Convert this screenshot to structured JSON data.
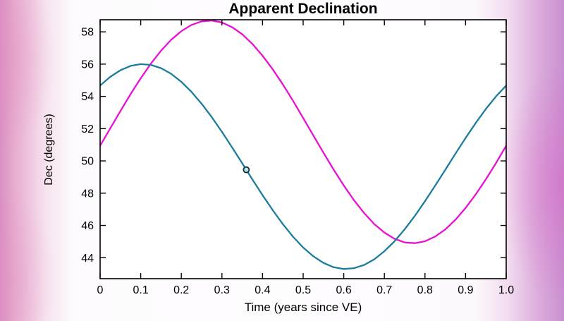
{
  "chart_data": {
    "type": "line",
    "title": "Apparent Declination",
    "xlabel": "Time (years since VE)",
    "ylabel": "Dec (degrees)",
    "xlim": [
      0,
      1
    ],
    "ylim": [
      42.7,
      58.75
    ],
    "grid": false,
    "legend": "none",
    "frame_color": "#000000",
    "plot_bg": "#ffffff",
    "x_ticks": [
      0,
      0.1,
      0.2,
      0.3,
      0.4,
      0.5,
      0.6,
      0.7,
      0.8,
      0.9,
      1.0
    ],
    "x_tick_labels": [
      "0",
      "0.1",
      "0.2",
      "0.3",
      "0.4",
      "0.5",
      "0.6",
      "0.7",
      "0.8",
      "0.9",
      "1.0"
    ],
    "y_ticks": [
      44,
      46,
      48,
      50,
      52,
      54,
      56,
      58
    ],
    "y_tick_labels": [
      "44",
      "46",
      "48",
      "50",
      "52",
      "54",
      "56",
      "58"
    ],
    "x": [
      0,
      0.025,
      0.05,
      0.075,
      0.1,
      0.125,
      0.15,
      0.175,
      0.2,
      0.225,
      0.25,
      0.275,
      0.3,
      0.325,
      0.35,
      0.375,
      0.4,
      0.425,
      0.45,
      0.475,
      0.5,
      0.525,
      0.55,
      0.575,
      0.6,
      0.625,
      0.65,
      0.675,
      0.7,
      0.725,
      0.75,
      0.775,
      0.8,
      0.825,
      0.85,
      0.875,
      0.9,
      0.925,
      0.95,
      0.975,
      1.0
    ],
    "series": [
      {
        "name": "magenta-declination-curve",
        "color": "#ea0fd4",
        "width": 2.3,
        "values": [
          50.94,
          52.02,
          53.09,
          54.14,
          55.12,
          56.03,
          56.83,
          57.51,
          58.04,
          58.43,
          58.65,
          58.7,
          58.58,
          58.29,
          57.85,
          57.25,
          56.52,
          55.68,
          54.74,
          53.73,
          52.66,
          51.58,
          50.51,
          49.46,
          48.48,
          47.57,
          46.77,
          46.09,
          45.56,
          45.17,
          44.95,
          44.9,
          45.02,
          45.31,
          45.75,
          46.35,
          47.08,
          47.92,
          48.86,
          49.87,
          50.94
        ]
      },
      {
        "name": "teal-declination-curve",
        "color": "#1c7d9c",
        "width": 2.3,
        "values": [
          54.67,
          55.21,
          55.62,
          55.89,
          56.0,
          55.95,
          55.75,
          55.4,
          54.9,
          54.28,
          53.54,
          52.71,
          51.8,
          50.84,
          49.85,
          48.85,
          47.88,
          46.95,
          46.08,
          45.3,
          44.63,
          44.09,
          43.68,
          43.41,
          43.3,
          43.35,
          43.55,
          43.9,
          44.4,
          45.02,
          45.76,
          46.59,
          47.5,
          48.46,
          49.45,
          50.45,
          51.42,
          52.35,
          53.22,
          54.0,
          54.67
        ]
      }
    ],
    "marker": {
      "x": 0.36,
      "y": 49.45,
      "radius": 4,
      "stroke": "#062e3e",
      "fill": "#bfe0ea",
      "on_series": "teal-declination-curve"
    }
  }
}
